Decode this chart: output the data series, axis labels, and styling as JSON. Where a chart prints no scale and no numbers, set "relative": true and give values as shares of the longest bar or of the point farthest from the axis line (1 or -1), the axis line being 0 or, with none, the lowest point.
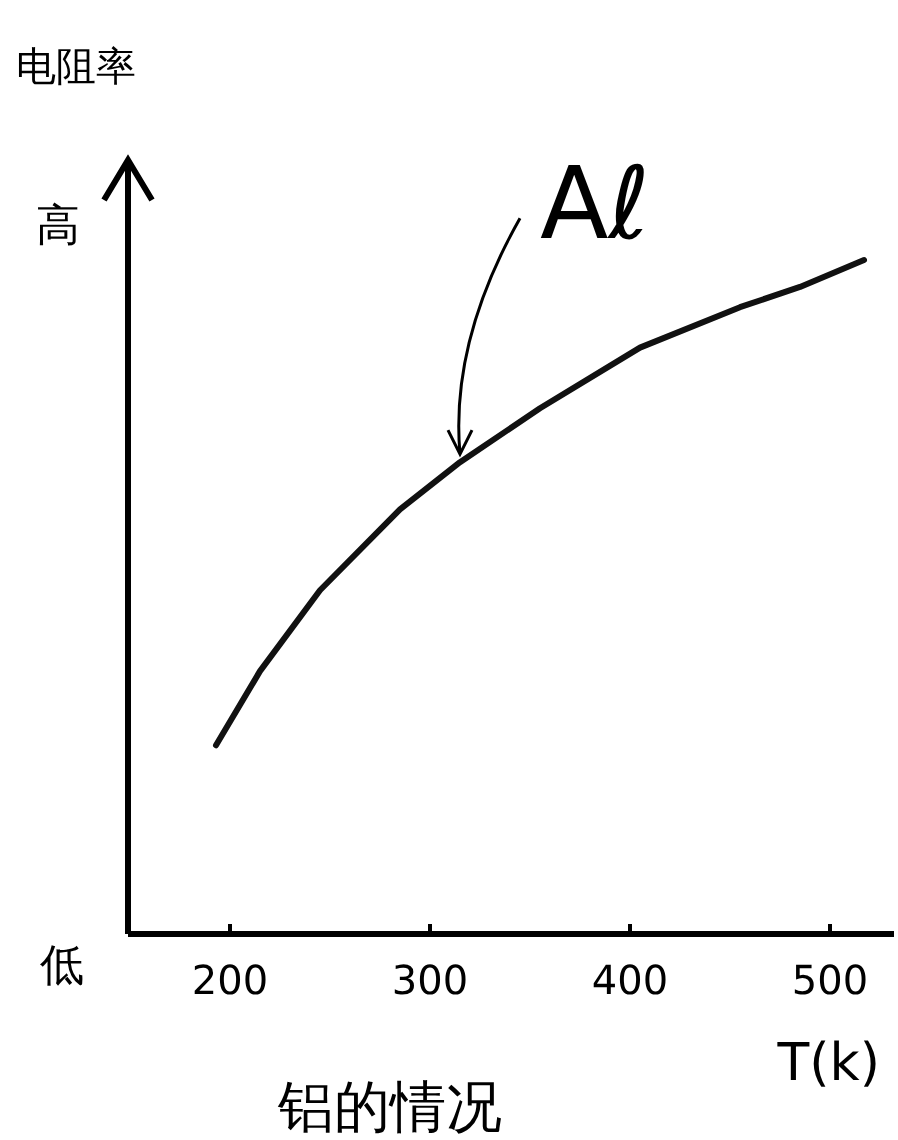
{
  "chart_data": {
    "type": "line",
    "relative": true,
    "title": "铝的情况",
    "xlabel": "T(k)",
    "ylabel": "电阻率",
    "x": [
      193,
      215,
      245,
      285,
      315,
      355,
      405,
      455,
      485,
      517
    ],
    "series": [
      {
        "color": "#111111",
        "values": [
          0.28,
          0.39,
          0.51,
          0.63,
          0.7,
          0.78,
          0.87,
          0.93,
          0.96,
          1.0
        ]
      }
    ],
    "xlim": [
      149,
      534
    ],
    "xticks": [
      200,
      300,
      400,
      500
    ],
    "annotations": [
      {
        "text": "Aℓ",
        "x": 315,
        "y": 0.7
      },
      "高",
      "低"
    ],
    "line_style": "solid"
  }
}
